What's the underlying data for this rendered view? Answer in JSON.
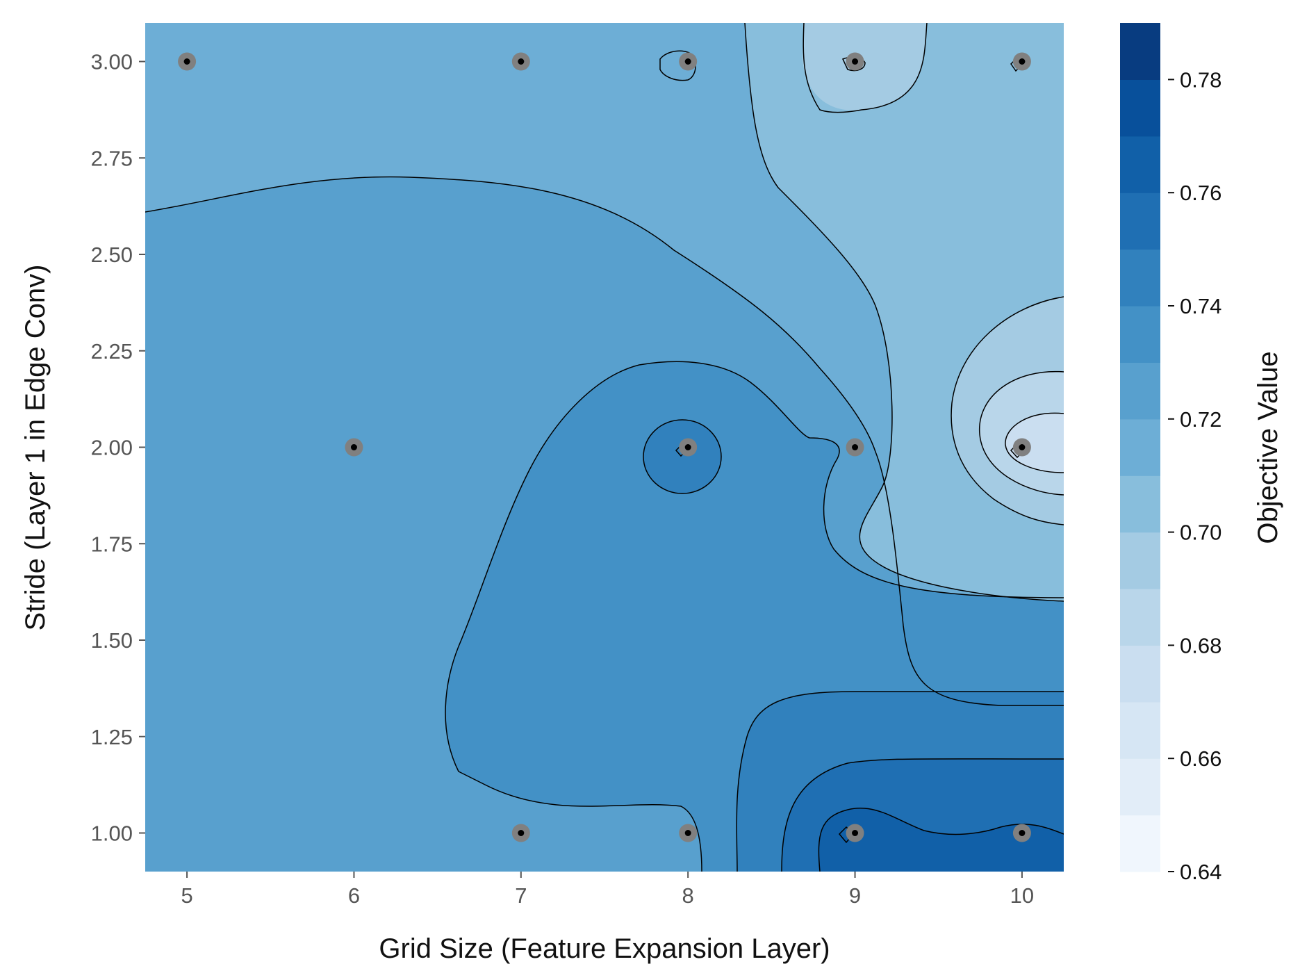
{
  "chart_data": {
    "type": "contour",
    "title": "",
    "xlabel": "Grid Size (Feature Expansion Layer)",
    "ylabel": "Stride (Layer 1 in Edge Conv)",
    "colorbar_label": "Objective Value",
    "xlim": [
      4.75,
      10.25
    ],
    "ylim": [
      0.9,
      3.1
    ],
    "x_ticks": [
      5,
      6,
      7,
      8,
      9,
      10
    ],
    "x_tick_labels": [
      "5",
      "6",
      "7",
      "8",
      "9",
      "10"
    ],
    "y_ticks": [
      1.0,
      1.25,
      1.5,
      1.75,
      2.0,
      2.25,
      2.5,
      2.75,
      3.0
    ],
    "y_tick_labels": [
      "1.00",
      "1.25",
      "1.50",
      "1.75",
      "2.00",
      "2.25",
      "2.50",
      "2.75",
      "3.00"
    ],
    "colorbar_range": [
      0.64,
      0.79
    ],
    "colorbar_ticks": [
      0.64,
      0.66,
      0.68,
      0.7,
      0.72,
      0.74,
      0.76,
      0.78
    ],
    "colorbar_tick_labels": [
      "0.64",
      "0.66",
      "0.68",
      "0.70",
      "0.72",
      "0.74",
      "0.76",
      "0.78"
    ],
    "colormap": [
      "#f0f6fd",
      "#e2edf8",
      "#d6e6f4",
      "#cadef0",
      "#b9d6ea",
      "#a4cbe3",
      "#88bedc",
      "#6daed6",
      "#58a0ce",
      "#4391c6",
      "#3181bd",
      "#1f6fb3",
      "#1160a8",
      "#08509b",
      "#083c80"
    ],
    "samples": [
      {
        "x": 5,
        "y": 3.0
      },
      {
        "x": 7,
        "y": 3.0
      },
      {
        "x": 8,
        "y": 3.0
      },
      {
        "x": 9,
        "y": 3.0
      },
      {
        "x": 10,
        "y": 3.0
      },
      {
        "x": 6,
        "y": 2.0
      },
      {
        "x": 8,
        "y": 2.0
      },
      {
        "x": 9,
        "y": 2.0
      },
      {
        "x": 10,
        "y": 2.0
      },
      {
        "x": 7,
        "y": 1.0
      },
      {
        "x": 8,
        "y": 1.0
      },
      {
        "x": 9,
        "y": 1.0
      },
      {
        "x": 10,
        "y": 1.0
      }
    ],
    "grid": false,
    "background": "#ffffff"
  }
}
